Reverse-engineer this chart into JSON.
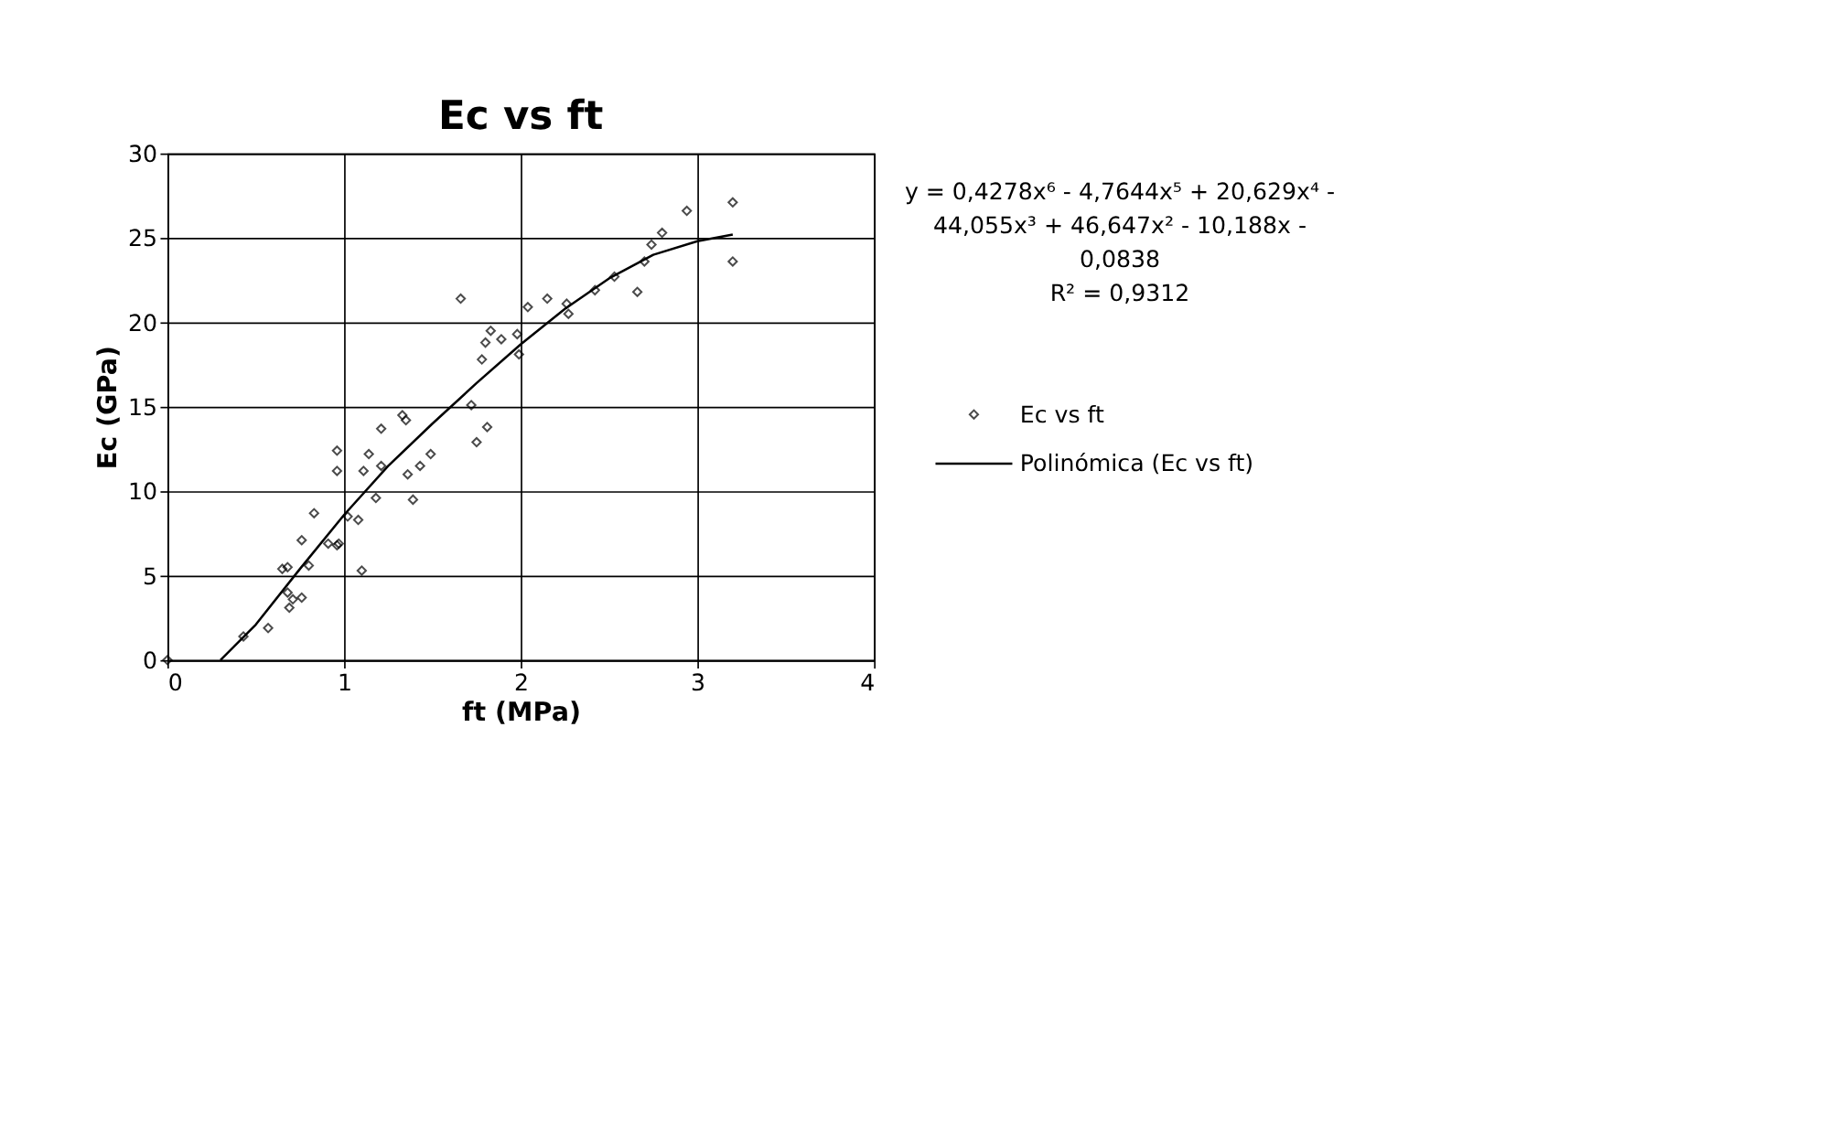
{
  "chart_data": {
    "type": "scatter",
    "title": "Ec vs ft",
    "xlabel": "ft (MPa)",
    "ylabel": "Ec (GPa)",
    "xlim": [
      0,
      4
    ],
    "ylim": [
      0,
      30
    ],
    "xticks": [
      0,
      1,
      2,
      3,
      4
    ],
    "yticks": [
      0,
      5,
      10,
      15,
      20,
      25,
      30
    ],
    "grid": true,
    "legend": "right",
    "marker": "diamond",
    "annotations": [
      "y = 0,4278x⁶ - 4,7644x⁵ + 20,629x⁴ -",
      "44,055x³ + 46,647x² - 10,188x -",
      "0,0838",
      "R² = 0,9312"
    ],
    "series": [
      {
        "name": "Ec vs ft",
        "color": "#000000",
        "x": [
          0,
          0.43,
          0.57,
          0.69,
          0.71,
          0.76,
          0.68,
          0.8,
          0.65,
          0.68,
          0.76,
          0.83,
          0.91,
          0.96,
          0.97,
          1.02,
          1.08,
          1.1,
          1.18,
          1.39,
          0.96,
          0.96,
          1.11,
          1.14,
          1.21,
          1.36,
          1.43,
          1.49,
          1.21,
          1.33,
          1.35,
          1.75,
          1.81,
          1.72,
          1.78,
          1.8,
          1.89,
          1.66,
          1.83,
          1.98,
          1.99,
          2.04,
          2.15,
          2.26,
          2.27,
          2.42,
          2.53,
          2.66,
          2.7,
          2.74,
          2.8,
          2.94,
          3.2,
          3.2
        ],
        "values": [
          0,
          1.4,
          1.9,
          3.1,
          3.6,
          3.7,
          4.0,
          5.6,
          5.4,
          5.5,
          7.1,
          8.7,
          6.9,
          6.8,
          6.9,
          8.5,
          8.3,
          5.3,
          9.6,
          9.5,
          11.2,
          12.4,
          11.2,
          12.2,
          11.5,
          11.0,
          11.5,
          12.2,
          13.7,
          14.5,
          14.2,
          12.9,
          13.8,
          15.1,
          17.8,
          18.8,
          19.0,
          21.4,
          19.5,
          19.3,
          18.1,
          20.9,
          21.4,
          21.1,
          20.5,
          21.9,
          22.7,
          21.8,
          23.6,
          24.6,
          25.3,
          26.6,
          27.1,
          23.6
        ]
      },
      {
        "name": "Polinómica (Ec vs ft)",
        "type": "line",
        "color": "#000000",
        "line_style": "solid",
        "marker": "none",
        "x": [
          0.3,
          0.5,
          0.75,
          1,
          1.25,
          1.5,
          1.75,
          2,
          2.25,
          2.5,
          2.75,
          3,
          3.2
        ],
        "values": [
          0,
          2.1,
          5.4,
          8.6,
          11.5,
          14,
          16.4,
          18.7,
          20.8,
          22.6,
          24,
          24.8,
          25.2
        ]
      }
    ]
  }
}
